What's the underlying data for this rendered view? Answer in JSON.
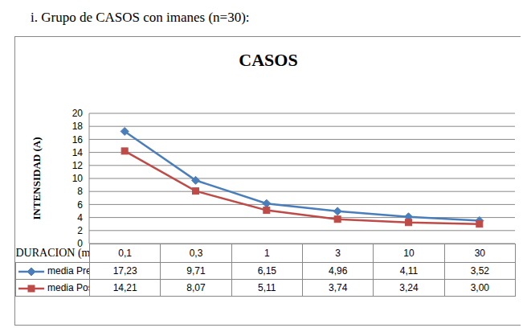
{
  "heading": "i. Grupo de CASOS con imanes (n=30):",
  "chart_data": {
    "type": "line",
    "title": "CASOS",
    "x_label": "DURACION (ms)",
    "y_label": "INTENSIDAD (A)",
    "categories": [
      "0,1",
      "0,3",
      "1",
      "3",
      "10",
      "30"
    ],
    "series": [
      {
        "name": "media Pre",
        "color": "#4a7ebb",
        "marker": "diamond",
        "values": [
          17.23,
          9.71,
          6.15,
          4.96,
          4.11,
          3.52
        ],
        "value_labels": [
          "17,23",
          "9,71",
          "6,15",
          "4,96",
          "4,11",
          "3,52"
        ]
      },
      {
        "name": "media Post",
        "color": "#be4b48",
        "marker": "square",
        "values": [
          14.21,
          8.07,
          5.11,
          3.74,
          3.24,
          3.0
        ],
        "value_labels": [
          "14,21",
          "8,07",
          "5,11",
          "3,74",
          "3,24",
          "3,00"
        ]
      }
    ],
    "ylim": [
      0,
      20
    ],
    "yticks": [
      0,
      2,
      4,
      6,
      8,
      10,
      12,
      14,
      16,
      18,
      20
    ],
    "grid": true
  }
}
